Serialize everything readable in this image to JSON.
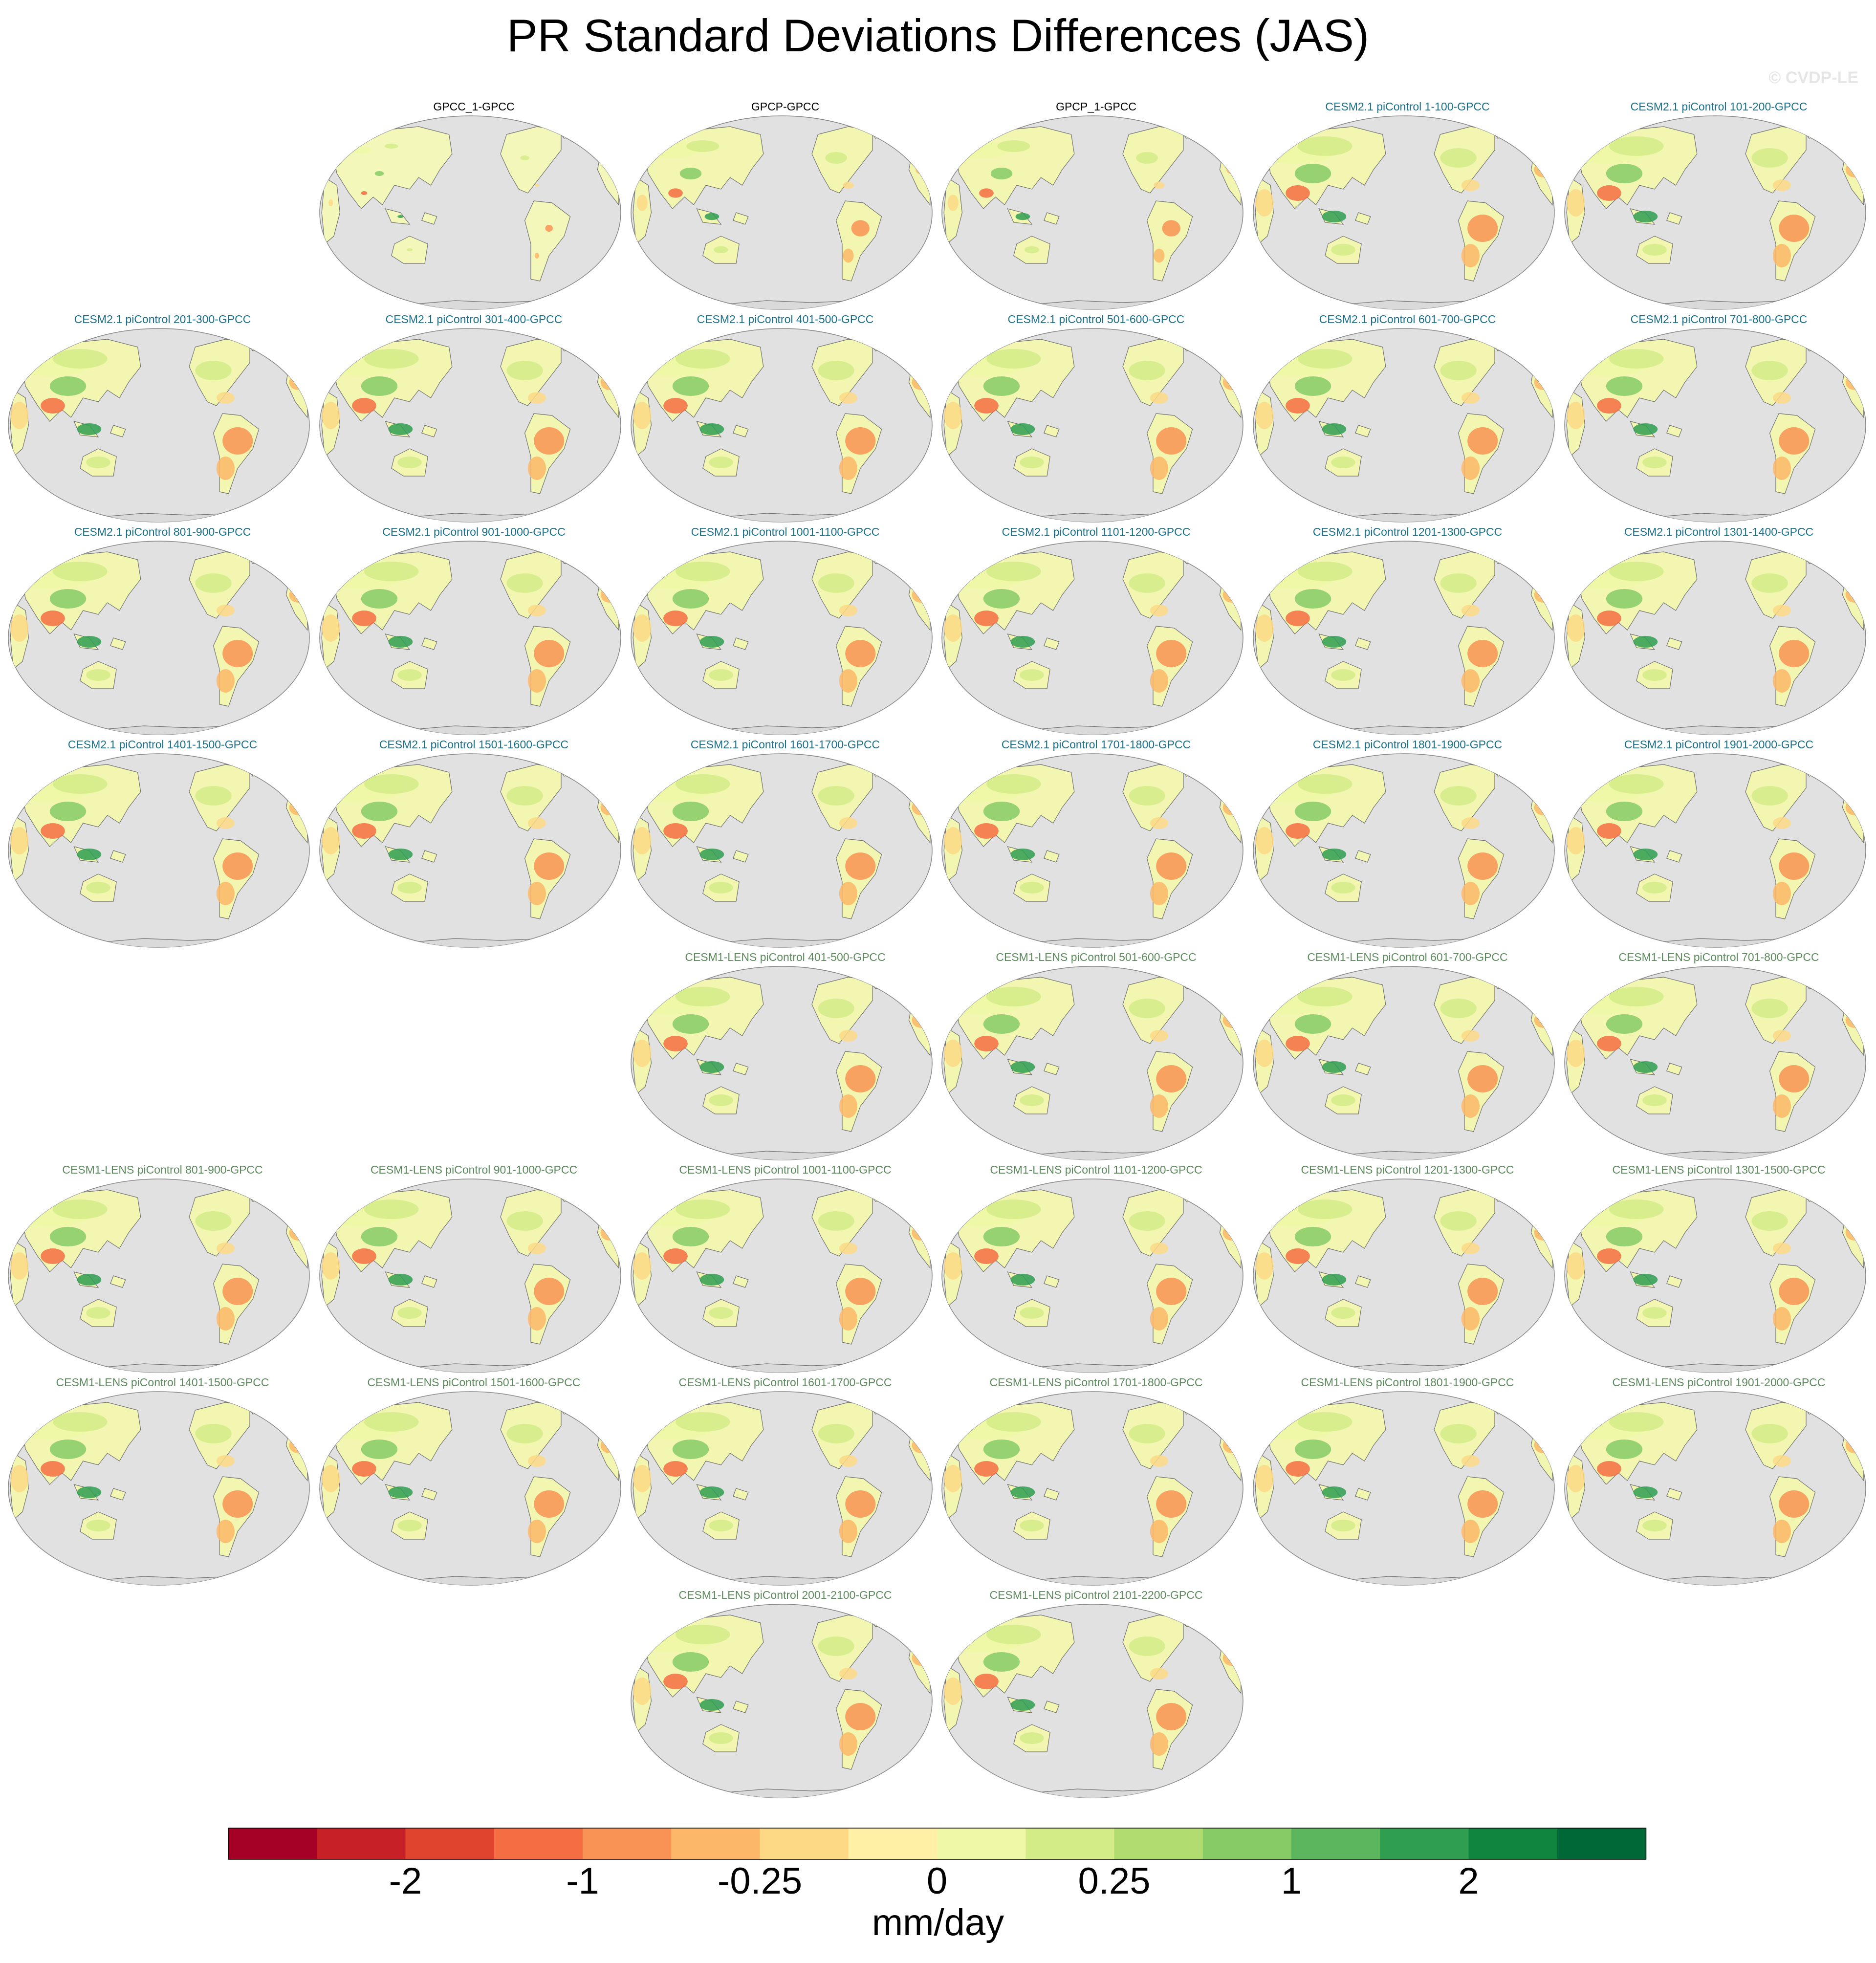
{
  "title": "PR Standard Deviations Differences (JAS)",
  "watermark": "© CVDP-LE",
  "colors": {
    "ocean": "#e1e1e1",
    "coastline": "#707070",
    "obs_title": "#000000",
    "cesm2_title": "#1a6f8a",
    "cesm1_title": "#5c8a5c"
  },
  "chart_data": {
    "type": "map-panels",
    "projection": "robinson-pacific-centered",
    "variable": "PR standard deviation difference",
    "season": "JAS",
    "units": "mm/day",
    "colorbar": {
      "colors": [
        "#a50026",
        "#c72027",
        "#e0442f",
        "#f46d43",
        "#f99355",
        "#fdb768",
        "#fdd985",
        "#fef1a5",
        "#eff8a6",
        "#d4ec88",
        "#b0dc70",
        "#86cb66",
        "#5bb65e",
        "#2f9e50",
        "#108540",
        "#006837"
      ],
      "tick_labels": [
        "-2",
        "-1",
        "-0.25",
        "0",
        "0.25",
        "1",
        "2"
      ],
      "tick_boundaries": [
        2,
        4,
        6,
        8,
        10,
        12,
        14
      ]
    },
    "panels": [
      {
        "label": "GPCC_1-GPCC",
        "group": "obs",
        "row": 0,
        "col": 1,
        "intensity": 0.25
      },
      {
        "label": "GPCP-GPCC",
        "group": "obs",
        "row": 0,
        "col": 2,
        "intensity": 0.6
      },
      {
        "label": "GPCP_1-GPCC",
        "group": "obs",
        "row": 0,
        "col": 3,
        "intensity": 0.6
      },
      {
        "label": "CESM2.1 piControl 1-100-GPCC",
        "group": "cesm2",
        "row": 0,
        "col": 4,
        "intensity": 1
      },
      {
        "label": "CESM2.1 piControl 101-200-GPCC",
        "group": "cesm2",
        "row": 0,
        "col": 5,
        "intensity": 1
      },
      {
        "label": "CESM2.1 piControl 201-300-GPCC",
        "group": "cesm2",
        "row": 1,
        "col": 0,
        "intensity": 1
      },
      {
        "label": "CESM2.1 piControl 301-400-GPCC",
        "group": "cesm2",
        "row": 1,
        "col": 1,
        "intensity": 1
      },
      {
        "label": "CESM2.1 piControl 401-500-GPCC",
        "group": "cesm2",
        "row": 1,
        "col": 2,
        "intensity": 1
      },
      {
        "label": "CESM2.1 piControl 501-600-GPCC",
        "group": "cesm2",
        "row": 1,
        "col": 3,
        "intensity": 1
      },
      {
        "label": "CESM2.1 piControl 601-700-GPCC",
        "group": "cesm2",
        "row": 1,
        "col": 4,
        "intensity": 1
      },
      {
        "label": "CESM2.1 piControl 701-800-GPCC",
        "group": "cesm2",
        "row": 1,
        "col": 5,
        "intensity": 1
      },
      {
        "label": "CESM2.1 piControl 801-900-GPCC",
        "group": "cesm2",
        "row": 2,
        "col": 0,
        "intensity": 1
      },
      {
        "label": "CESM2.1 piControl 901-1000-GPCC",
        "group": "cesm2",
        "row": 2,
        "col": 1,
        "intensity": 1
      },
      {
        "label": "CESM2.1 piControl 1001-1100-GPCC",
        "group": "cesm2",
        "row": 2,
        "col": 2,
        "intensity": 1
      },
      {
        "label": "CESM2.1 piControl 1101-1200-GPCC",
        "group": "cesm2",
        "row": 2,
        "col": 3,
        "intensity": 1
      },
      {
        "label": "CESM2.1 piControl 1201-1300-GPCC",
        "group": "cesm2",
        "row": 2,
        "col": 4,
        "intensity": 1
      },
      {
        "label": "CESM2.1 piControl 1301-1400-GPCC",
        "group": "cesm2",
        "row": 2,
        "col": 5,
        "intensity": 1
      },
      {
        "label": "CESM2.1 piControl 1401-1500-GPCC",
        "group": "cesm2",
        "row": 3,
        "col": 0,
        "intensity": 1
      },
      {
        "label": "CESM2.1 piControl 1501-1600-GPCC",
        "group": "cesm2",
        "row": 3,
        "col": 1,
        "intensity": 1
      },
      {
        "label": "CESM2.1 piControl 1601-1700-GPCC",
        "group": "cesm2",
        "row": 3,
        "col": 2,
        "intensity": 1
      },
      {
        "label": "CESM2.1 piControl 1701-1800-GPCC",
        "group": "cesm2",
        "row": 3,
        "col": 3,
        "intensity": 1
      },
      {
        "label": "CESM2.1 piControl 1801-1900-GPCC",
        "group": "cesm2",
        "row": 3,
        "col": 4,
        "intensity": 1
      },
      {
        "label": "CESM2.1 piControl 1901-2000-GPCC",
        "group": "cesm2",
        "row": 3,
        "col": 5,
        "intensity": 1
      },
      {
        "label": "CESM1-LENS piControl 401-500-GPCC",
        "group": "cesm1",
        "row": 4,
        "col": 2,
        "intensity": 1
      },
      {
        "label": "CESM1-LENS piControl 501-600-GPCC",
        "group": "cesm1",
        "row": 4,
        "col": 3,
        "intensity": 1
      },
      {
        "label": "CESM1-LENS piControl 601-700-GPCC",
        "group": "cesm1",
        "row": 4,
        "col": 4,
        "intensity": 1
      },
      {
        "label": "CESM1-LENS piControl 701-800-GPCC",
        "group": "cesm1",
        "row": 4,
        "col": 5,
        "intensity": 1
      },
      {
        "label": "CESM1-LENS piControl 801-900-GPCC",
        "group": "cesm1",
        "row": 5,
        "col": 0,
        "intensity": 1
      },
      {
        "label": "CESM1-LENS piControl 901-1000-GPCC",
        "group": "cesm1",
        "row": 5,
        "col": 1,
        "intensity": 1
      },
      {
        "label": "CESM1-LENS piControl 1001-1100-GPCC",
        "group": "cesm1",
        "row": 5,
        "col": 2,
        "intensity": 1
      },
      {
        "label": "CESM1-LENS piControl 1101-1200-GPCC",
        "group": "cesm1",
        "row": 5,
        "col": 3,
        "intensity": 1
      },
      {
        "label": "CESM1-LENS piControl 1201-1300-GPCC",
        "group": "cesm1",
        "row": 5,
        "col": 4,
        "intensity": 1
      },
      {
        "label": "CESM1-LENS piControl 1301-1500-GPCC",
        "group": "cesm1",
        "row": 5,
        "col": 5,
        "intensity": 1
      },
      {
        "label": "CESM1-LENS piControl 1401-1500-GPCC",
        "group": "cesm1",
        "row": 6,
        "col": 0,
        "intensity": 1
      },
      {
        "label": "CESM1-LENS piControl 1501-1600-GPCC",
        "group": "cesm1",
        "row": 6,
        "col": 1,
        "intensity": 1
      },
      {
        "label": "CESM1-LENS piControl 1601-1700-GPCC",
        "group": "cesm1",
        "row": 6,
        "col": 2,
        "intensity": 1
      },
      {
        "label": "CESM1-LENS piControl 1701-1800-GPCC",
        "group": "cesm1",
        "row": 6,
        "col": 3,
        "intensity": 1
      },
      {
        "label": "CESM1-LENS piControl 1801-1900-GPCC",
        "group": "cesm1",
        "row": 6,
        "col": 4,
        "intensity": 1
      },
      {
        "label": "CESM1-LENS piControl 1901-2000-GPCC",
        "group": "cesm1",
        "row": 6,
        "col": 5,
        "intensity": 1
      },
      {
        "label": "CESM1-LENS piControl 2001-2100-GPCC",
        "group": "cesm1",
        "row": 7,
        "col": 2,
        "intensity": 1
      },
      {
        "label": "CESM1-LENS piControl 2101-2200-GPCC",
        "group": "cesm1",
        "row": 7,
        "col": 3,
        "intensity": 1
      }
    ]
  }
}
